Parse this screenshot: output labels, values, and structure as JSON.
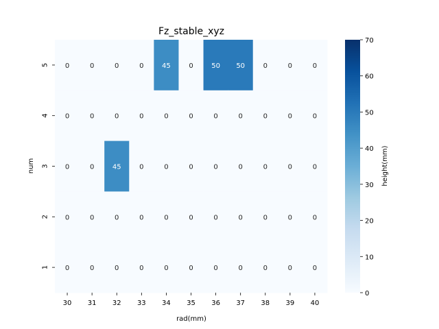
{
  "chart_data": {
    "type": "heatmap",
    "title": "Fz_stable_xyz",
    "xlabel": "rad(mm)",
    "ylabel": "num",
    "x_categories": [
      "30",
      "31",
      "32",
      "33",
      "34",
      "35",
      "36",
      "37",
      "38",
      "39",
      "40"
    ],
    "y_categories": [
      "5",
      "4",
      "3",
      "2",
      "1"
    ],
    "values": [
      [
        0,
        0,
        0,
        0,
        45,
        0,
        50,
        50,
        0,
        0,
        0
      ],
      [
        0,
        0,
        0,
        0,
        0,
        0,
        0,
        0,
        0,
        0,
        0
      ],
      [
        0,
        0,
        45,
        0,
        0,
        0,
        0,
        0,
        0,
        0,
        0
      ],
      [
        0,
        0,
        0,
        0,
        0,
        0,
        0,
        0,
        0,
        0,
        0
      ],
      [
        0,
        0,
        0,
        0,
        0,
        0,
        0,
        0,
        0,
        0,
        0
      ]
    ],
    "colorbar": {
      "label": "height(mm)",
      "range": [
        0,
        70
      ],
      "ticks": [
        "0",
        "10",
        "20",
        "30",
        "40",
        "50",
        "60",
        "70"
      ],
      "colormap": "Blues",
      "color_low": "#f7fbff",
      "color_high": "#08306b"
    },
    "grid": false
  }
}
